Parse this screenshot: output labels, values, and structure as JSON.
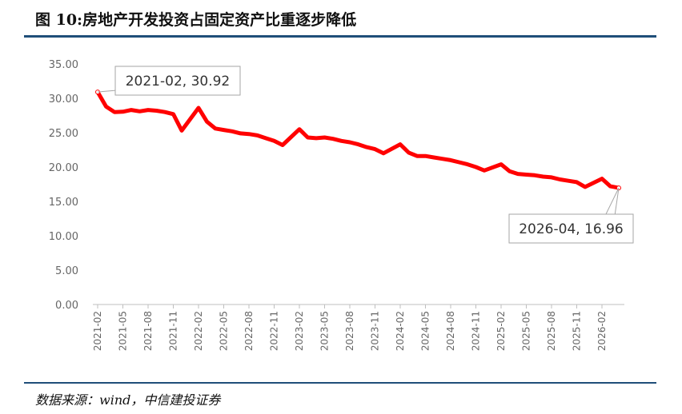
{
  "header": {
    "title": "图 10:房地产开发投资占固定资产比重逐步降低"
  },
  "footer": {
    "source": "数据来源：wind，中信建投证券"
  },
  "chart_data": {
    "type": "line",
    "title": "",
    "xlabel": "",
    "ylabel": "",
    "ylim": [
      0,
      35
    ],
    "yticks": [
      "0.00",
      "5.00",
      "10.00",
      "15.00",
      "20.00",
      "25.00",
      "30.00",
      "35.00"
    ],
    "xticks": [
      "2021-02",
      "2021-05",
      "2021-08",
      "2021-11",
      "2022-02",
      "2022-05",
      "2022-08",
      "2022-11",
      "2023-02",
      "2023-05",
      "2023-08",
      "2023-11",
      "2024-02",
      "2024-05",
      "2024-08",
      "2024-11",
      "2025-02",
      "2025-05",
      "2025-08",
      "2025-11",
      "2026-02"
    ],
    "grid": false,
    "legend": "none",
    "line_color": "#ff0000",
    "series": [
      {
        "x": [
          "2021-02",
          "2021-03",
          "2021-04",
          "2021-05",
          "2021-06",
          "2021-07",
          "2021-08",
          "2021-09",
          "2021-10",
          "2021-11",
          "2021-12",
          "2022-02",
          "2022-03",
          "2022-04",
          "2022-05",
          "2022-06",
          "2022-07",
          "2022-08",
          "2022-09",
          "2022-10",
          "2022-11",
          "2022-12",
          "2023-02",
          "2023-03",
          "2023-04",
          "2023-05",
          "2023-06",
          "2023-07",
          "2023-08",
          "2023-09",
          "2023-10",
          "2023-11",
          "2023-12",
          "2024-02",
          "2024-03",
          "2024-04",
          "2024-05",
          "2024-06",
          "2024-07",
          "2024-08",
          "2024-09",
          "2024-10",
          "2024-11",
          "2024-12",
          "2025-02",
          "2025-03",
          "2025-04",
          "2025-05",
          "2025-06",
          "2025-07",
          "2025-08",
          "2025-09",
          "2025-10",
          "2025-11",
          "2025-12",
          "2026-02",
          "2026-03",
          "2026-04"
        ],
        "values": [
          30.92,
          28.8,
          28.0,
          28.05,
          28.3,
          28.1,
          28.3,
          28.2,
          28.0,
          27.7,
          25.3,
          28.6,
          26.6,
          25.6,
          25.4,
          25.2,
          24.9,
          24.8,
          24.6,
          24.2,
          23.8,
          23.2,
          25.5,
          24.3,
          24.2,
          24.3,
          24.1,
          23.8,
          23.6,
          23.3,
          22.9,
          22.6,
          22.0,
          23.3,
          22.1,
          21.6,
          21.6,
          21.4,
          21.2,
          21.0,
          20.7,
          20.4,
          20.0,
          19.5,
          20.4,
          19.4,
          19.0,
          18.9,
          18.8,
          18.6,
          18.5,
          18.2,
          18.0,
          17.8,
          17.1,
          18.3,
          17.2,
          16.96
        ]
      }
    ],
    "annotations": [
      {
        "text": "2021-02, 30.92",
        "x": "2021-02",
        "y": 30.92
      },
      {
        "text": "2026-04, 16.96",
        "x": "2026-04",
        "y": 16.96
      }
    ]
  }
}
